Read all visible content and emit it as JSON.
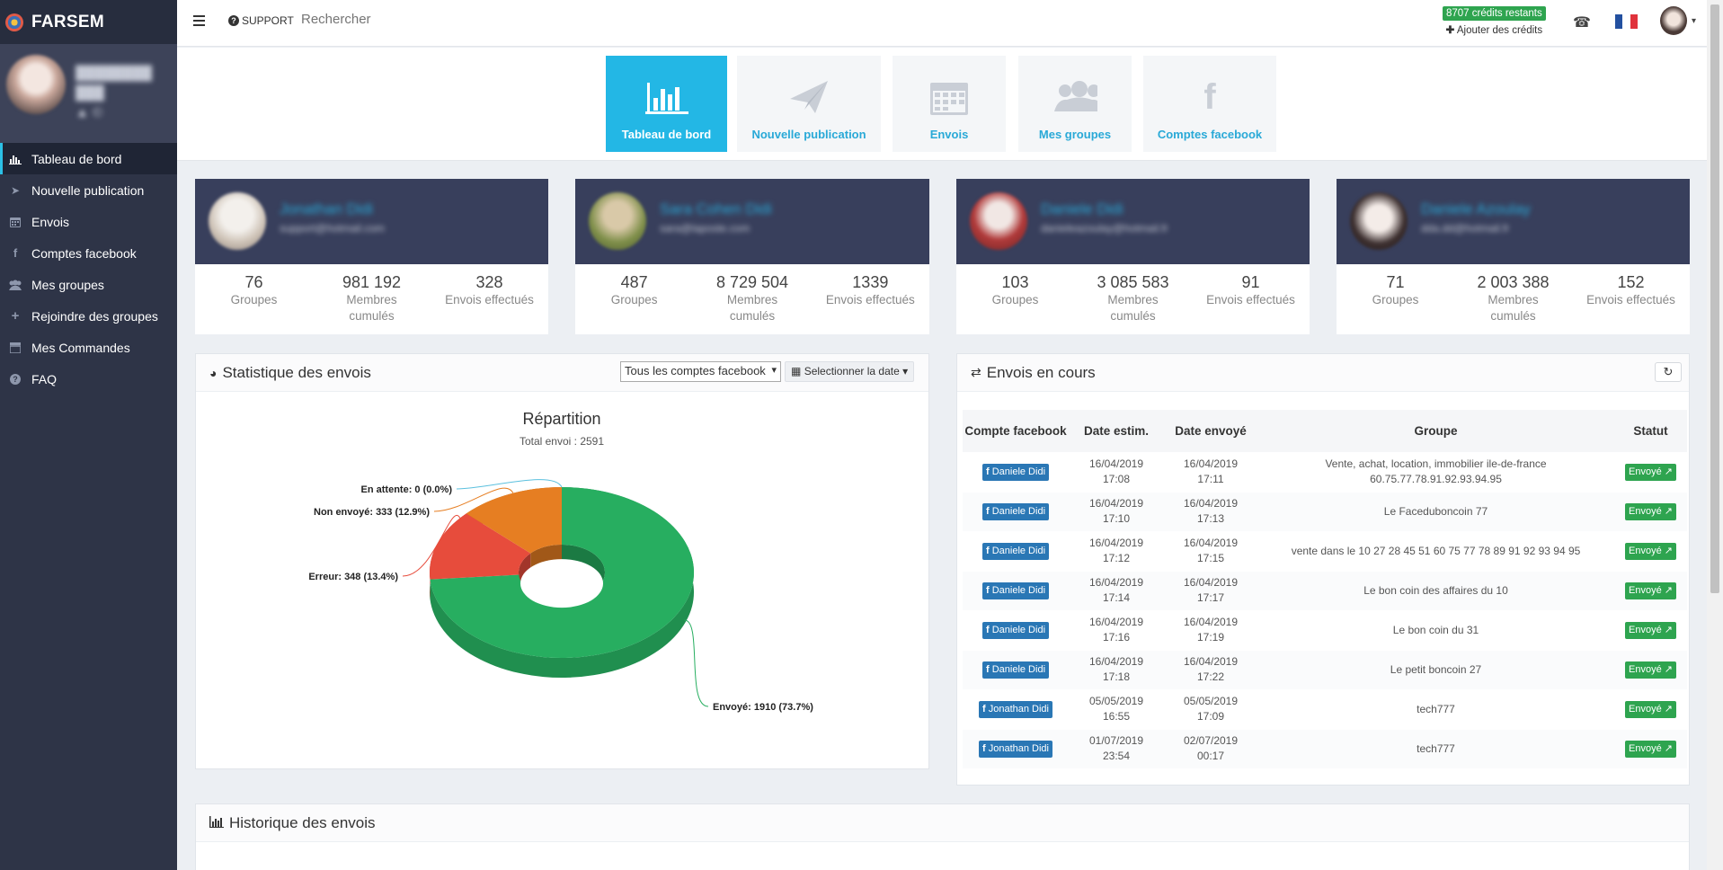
{
  "brand": {
    "name": "FARSEM"
  },
  "sidebar": {
    "items": [
      {
        "label": "Tableau de bord",
        "icon": "bar-chart-icon"
      },
      {
        "label": "Nouvelle publication",
        "icon": "paper-plane-icon"
      },
      {
        "label": "Envois",
        "icon": "calendar-icon"
      },
      {
        "label": "Comptes facebook",
        "icon": "facebook-icon"
      },
      {
        "label": "Mes groupes",
        "icon": "users-icon"
      },
      {
        "label": "Rejoindre des groupes",
        "icon": "plus-icon"
      },
      {
        "label": "Mes Commandes",
        "icon": "list-icon"
      },
      {
        "label": "FAQ",
        "icon": "question-icon"
      }
    ]
  },
  "topbar": {
    "support_label": "SUPPORT",
    "search_placeholder": "Rechercher",
    "credits_badge": "8707 crédits restants",
    "add_credits": "Ajouter des crédits"
  },
  "quicknav": {
    "tiles": [
      {
        "label": "Tableau de bord",
        "icon": "bar-chart-icon"
      },
      {
        "label": "Nouvelle publication",
        "icon": "paper-plane-icon"
      },
      {
        "label": "Envois",
        "icon": "calendar-icon"
      },
      {
        "label": "Mes groupes",
        "icon": "users-icon"
      },
      {
        "label": "Comptes facebook",
        "icon": "facebook-icon"
      }
    ]
  },
  "accounts": [
    {
      "groups": "76",
      "groups_label": "Groupes",
      "members": "981 192",
      "members_label": "Membres cumulés",
      "sends": "328",
      "sends_label": "Envois effectués"
    },
    {
      "groups": "487",
      "groups_label": "Groupes",
      "members": "8 729 504",
      "members_label": "Membres cumulés",
      "sends": "1339",
      "sends_label": "Envois effectués"
    },
    {
      "groups": "103",
      "groups_label": "Groupes",
      "members": "3 085 583",
      "members_label": "Membres cumulés",
      "sends": "91",
      "sends_label": "Envois effectués"
    },
    {
      "groups": "71",
      "groups_label": "Groupes",
      "members": "2 003 388",
      "members_label": "Membres cumulés",
      "sends": "152",
      "sends_label": "Envois effectués"
    }
  ],
  "stats_panel": {
    "title": "Statistique des envois",
    "account_select": "Tous les comptes facebook",
    "date_button": "Selectionner la date"
  },
  "chart_data": {
    "type": "pie",
    "title": "Répartition",
    "subtitle": "Total envoi : 2591",
    "slices": [
      {
        "label": "Envoyé: 1910 (73.7%)",
        "name": "Envoyé",
        "value": 1910,
        "percent": 73.7,
        "color": "#27ae60"
      },
      {
        "label": "Erreur: 348 (13.4%)",
        "name": "Erreur",
        "value": 348,
        "percent": 13.4,
        "color": "#e74c3c"
      },
      {
        "label": "Non envoyé: 333 (12.9%)",
        "name": "Non envoyé",
        "value": 333,
        "percent": 12.9,
        "color": "#e67e22"
      },
      {
        "label": "En attente: 0 (0.0%)",
        "name": "En attente",
        "value": 0,
        "percent": 0.0,
        "color": "#5bc0de"
      }
    ]
  },
  "envois_panel": {
    "title": "Envois en cours",
    "headers": [
      "Compte facebook",
      "Date estim.",
      "Date envoyé",
      "Groupe",
      "Statut"
    ],
    "rows": [
      {
        "account": "Daniele Didi",
        "est": "16/04/2019 17:08",
        "sent": "16/04/2019 17:11",
        "group": "Vente, achat, location, immobilier ile-de-france 60.75.77.78.91.92.93.94.95",
        "status": "Envoyé"
      },
      {
        "account": "Daniele Didi",
        "est": "16/04/2019 17:10",
        "sent": "16/04/2019 17:13",
        "group": "Le Faceduboncoin 77",
        "status": "Envoyé"
      },
      {
        "account": "Daniele Didi",
        "est": "16/04/2019 17:12",
        "sent": "16/04/2019 17:15",
        "group": "vente dans le 10 27 28 45 51 60 75 77 78 89 91 92 93 94 95",
        "status": "Envoyé"
      },
      {
        "account": "Daniele Didi",
        "est": "16/04/2019 17:14",
        "sent": "16/04/2019 17:17",
        "group": "Le bon coin des affaires du 10",
        "status": "Envoyé"
      },
      {
        "account": "Daniele Didi",
        "est": "16/04/2019 17:16",
        "sent": "16/04/2019 17:19",
        "group": "Le bon coin du 31",
        "status": "Envoyé"
      },
      {
        "account": "Daniele Didi",
        "est": "16/04/2019 17:18",
        "sent": "16/04/2019 17:22",
        "group": "Le petit boncoin 27",
        "status": "Envoyé"
      },
      {
        "account": "Jonathan Didi",
        "est": "05/05/2019 16:55",
        "sent": "05/05/2019 17:09",
        "group": "tech777",
        "status": "Envoyé"
      },
      {
        "account": "Jonathan Didi",
        "est": "01/07/2019 23:54",
        "sent": "02/07/2019 00:17",
        "group": "tech777",
        "status": "Envoyé"
      }
    ]
  },
  "history_panel": {
    "title": "Historique des envois"
  }
}
